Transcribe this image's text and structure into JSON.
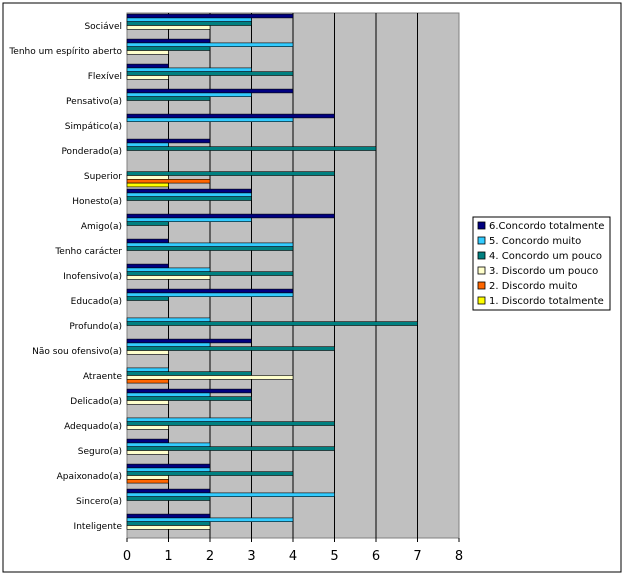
{
  "chart_data": {
    "type": "bar",
    "orientation": "horizontal",
    "categories": [
      "Sociável",
      "Tenho um espírito aberto",
      "Flexível",
      "Pensativo(a)",
      "Simpático(a)",
      "Ponderado(a)",
      "Superior",
      "Honesto(a)",
      "Amigo(a)",
      "Tenho carácter",
      "Inofensivo(a)",
      "Educado(a)",
      "Profundo(a)",
      "Não sou ofensivo(a)",
      "Atraente",
      "Delicado(a)",
      "Adequado(a)",
      "Seguro(a)",
      "Apaixonado(a)",
      "Sincero(a)",
      "Inteligente"
    ],
    "series": [
      {
        "name": "6.Concordo totalmente",
        "color": "#000080",
        "values": [
          4,
          2,
          1,
          4,
          5,
          2,
          0,
          3,
          5,
          1,
          1,
          4,
          0,
          3,
          0,
          3,
          0,
          1,
          2,
          2,
          2
        ]
      },
      {
        "name": "5. Concordo muito",
        "color": "#33CCFF",
        "values": [
          3,
          4,
          3,
          3,
          4,
          1,
          0,
          3,
          3,
          4,
          2,
          4,
          2,
          2,
          1,
          2,
          3,
          2,
          2,
          5,
          4
        ]
      },
      {
        "name": "4. Concordo um pouco",
        "color": "#008080",
        "values": [
          3,
          2,
          4,
          2,
          0,
          6,
          5,
          3,
          1,
          4,
          4,
          1,
          7,
          5,
          3,
          3,
          5,
          5,
          4,
          2,
          2
        ]
      },
      {
        "name": "3. Discordo um pouco",
        "color": "#FFFFCC",
        "values": [
          2,
          1,
          1,
          0,
          0,
          0,
          1,
          0,
          0,
          0,
          2,
          0,
          0,
          1,
          4,
          1,
          1,
          1,
          1,
          0,
          2
        ]
      },
      {
        "name": "2. Discordo muito",
        "color": "#FF6600",
        "values": [
          0,
          0,
          0,
          0,
          0,
          0,
          2,
          0,
          0,
          0,
          0,
          0,
          0,
          0,
          1,
          0,
          0,
          0,
          1,
          0,
          0
        ]
      },
      {
        "name": "1. Discordo totalmente",
        "color": "#FFFF00",
        "values": [
          0,
          0,
          0,
          0,
          0,
          0,
          1,
          0,
          0,
          0,
          0,
          0,
          0,
          0,
          0,
          0,
          0,
          0,
          0,
          0,
          0
        ]
      }
    ],
    "xlim": [
      0,
      8
    ],
    "xticks": [
      0,
      1,
      2,
      3,
      4,
      5,
      6,
      7,
      8
    ],
    "grid": true,
    "legend_position": "right",
    "plot_background": "#C0C0C0"
  }
}
